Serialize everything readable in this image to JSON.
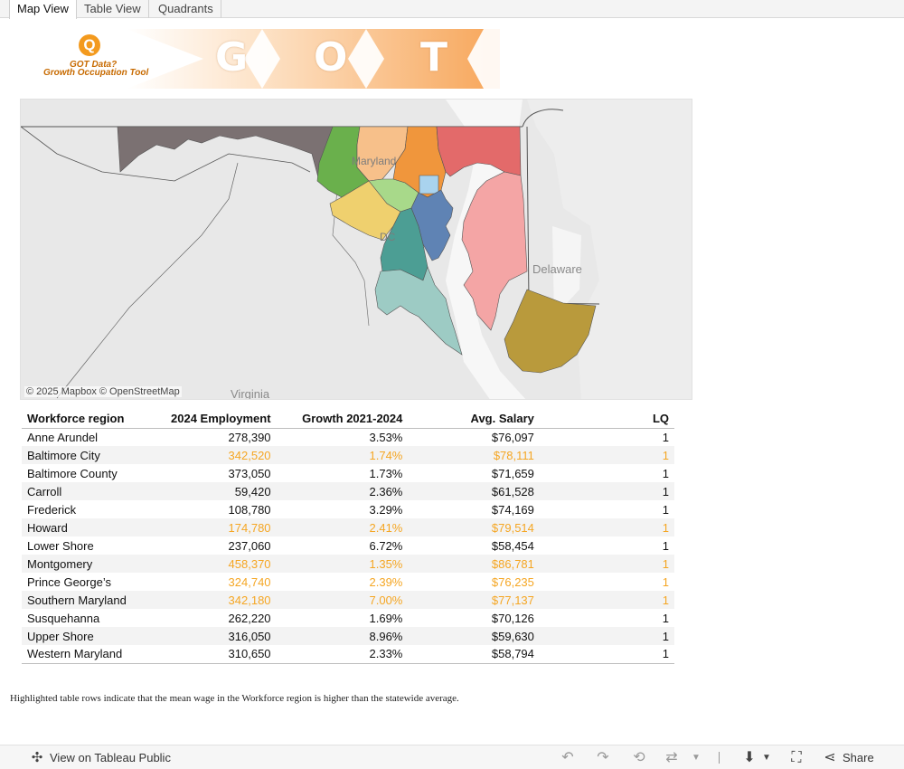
{
  "tabs": [
    {
      "label": "Map View",
      "active": true
    },
    {
      "label": "Table View",
      "active": false
    },
    {
      "label": "Quadrants",
      "active": false
    }
  ],
  "logo": {
    "line1": "GOT Data?",
    "line2": "Growth Occupation Tool",
    "letters": [
      "G",
      "O",
      "T"
    ],
    "brand_color": "#f39a1e"
  },
  "map": {
    "labels": {
      "delaware": "Delaware",
      "virginia": "Virginia",
      "maryland": "Maryland",
      "dc": "DC"
    },
    "attribution": "© 2025 Mapbox © OpenStreetMap",
    "region_colors": {
      "Western Maryland": "#7b7172",
      "Frederick": "#6ab04c",
      "Carroll": "#f7c08a",
      "Baltimore County": "#f0963c",
      "Susquehanna": "#e36a6a",
      "Baltimore City": "#a9d3ee",
      "Howard": "#a8d98a",
      "Montgomery": "#efd06e",
      "Anne Arundel": "#5f83b4",
      "Prince George's": "#4c9e94",
      "Southern Maryland": "#9dcbc4",
      "Upper Shore": "#f4a5a5",
      "Lower Shore": "#b99a3c"
    }
  },
  "table": {
    "headers": [
      "Workforce region",
      "2024 Employment",
      "Growth 2021-2024",
      "Avg. Salary",
      "LQ"
    ],
    "highlight_color": "#f5a623",
    "rows": [
      {
        "region": "Anne Arundel",
        "employment": "278,390",
        "growth": "3.53%",
        "salary": "$76,097",
        "lq": "1",
        "highlight": false
      },
      {
        "region": "Baltimore City",
        "employment": "342,520",
        "growth": "1.74%",
        "salary": "$78,111",
        "lq": "1",
        "highlight": true
      },
      {
        "region": "Baltimore County",
        "employment": "373,050",
        "growth": "1.73%",
        "salary": "$71,659",
        "lq": "1",
        "highlight": false
      },
      {
        "region": "Carroll",
        "employment": "59,420",
        "growth": "2.36%",
        "salary": "$61,528",
        "lq": "1",
        "highlight": false
      },
      {
        "region": "Frederick",
        "employment": "108,780",
        "growth": "3.29%",
        "salary": "$74,169",
        "lq": "1",
        "highlight": false
      },
      {
        "region": "Howard",
        "employment": "174,780",
        "growth": "2.41%",
        "salary": "$79,514",
        "lq": "1",
        "highlight": true
      },
      {
        "region": "Lower Shore",
        "employment": "237,060",
        "growth": "6.72%",
        "salary": "$58,454",
        "lq": "1",
        "highlight": false
      },
      {
        "region": "Montgomery",
        "employment": "458,370",
        "growth": "1.35%",
        "salary": "$86,781",
        "lq": "1",
        "highlight": true
      },
      {
        "region": "Prince George’s",
        "employment": "324,740",
        "growth": "2.39%",
        "salary": "$76,235",
        "lq": "1",
        "highlight": true
      },
      {
        "region": "Southern Maryland",
        "employment": "342,180",
        "growth": "7.00%",
        "salary": "$77,137",
        "lq": "1",
        "highlight": true
      },
      {
        "region": "Susquehanna",
        "employment": "262,220",
        "growth": "1.69%",
        "salary": "$70,126",
        "lq": "1",
        "highlight": false
      },
      {
        "region": "Upper Shore",
        "employment": "316,050",
        "growth": "8.96%",
        "salary": "$59,630",
        "lq": "1",
        "highlight": false
      },
      {
        "region": "Western Maryland",
        "employment": "310,650",
        "growth": "2.33%",
        "salary": "$58,794",
        "lq": "1",
        "highlight": false
      }
    ]
  },
  "footnote": "Highlighted table rows indicate that the mean wage in the Workforce region is higher than the statewide average.",
  "toolbar": {
    "view_on": "View on Tableau Public",
    "share": "Share",
    "icons": [
      "tableau-icon",
      "undo-icon",
      "redo-icon",
      "revert-icon",
      "refresh-icon",
      "pause-icon",
      "download-icon",
      "fullscreen-icon",
      "share-icon"
    ]
  }
}
